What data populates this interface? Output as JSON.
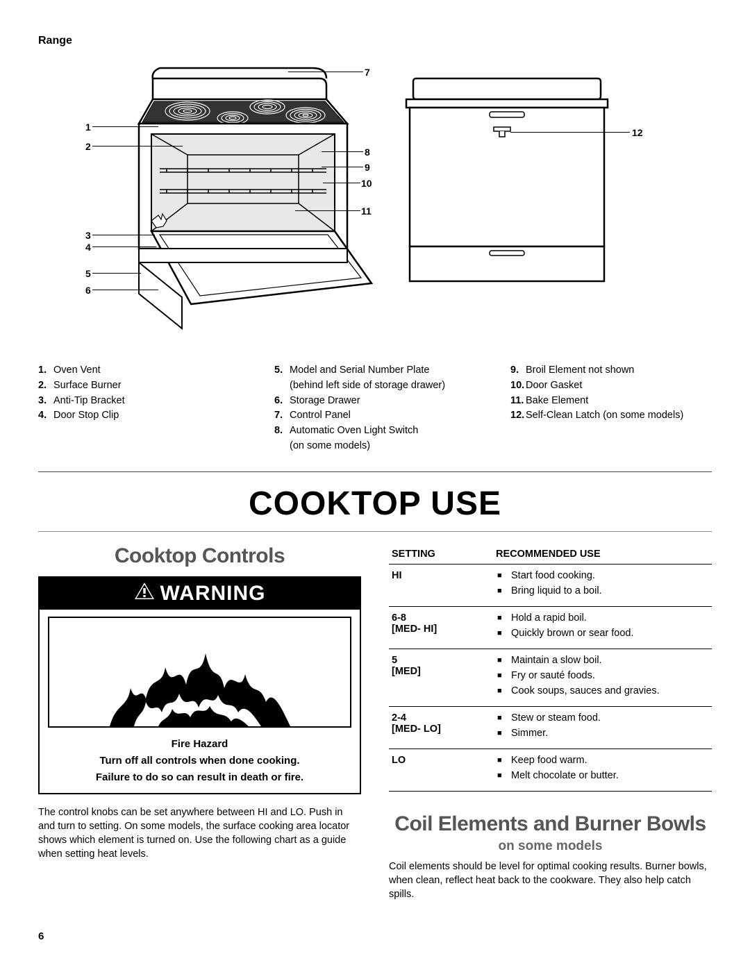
{
  "top_label": "Range",
  "diagram": {
    "callouts_left": [
      "1",
      "2",
      "3",
      "4",
      "5",
      "6"
    ],
    "callouts_mid": [
      "7",
      "8",
      "9",
      "10",
      "11"
    ],
    "callouts_right": [
      "12"
    ]
  },
  "legend": {
    "col1": [
      {
        "n": "1.",
        "t": "Oven Vent"
      },
      {
        "n": "2.",
        "t": "Surface Burner"
      },
      {
        "n": "3.",
        "t": "Anti-Tip Bracket"
      },
      {
        "n": "4.",
        "t": "Door Stop Clip"
      }
    ],
    "col2": [
      {
        "n": "5.",
        "t": "Model and Serial Number Plate",
        "sub": "(behind left side of storage drawer)"
      },
      {
        "n": "6.",
        "t": "Storage Drawer"
      },
      {
        "n": "7.",
        "t": "Control Panel"
      },
      {
        "n": "8.",
        "t": "Automatic Oven Light Switch",
        "sub": "(on some models)"
      }
    ],
    "col3": [
      {
        "n": "9.",
        "t": "Broil Element not shown"
      },
      {
        "n": "10.",
        "t": "Door Gasket"
      },
      {
        "n": "11.",
        "t": "Bake Element"
      },
      {
        "n": "12.",
        "t": "Self-Clean Latch (on some models)"
      }
    ]
  },
  "main_title": "COOKTOP USE",
  "left": {
    "subheading": "Cooktop Controls",
    "warning_label": "WARNING",
    "hazard": {
      "title": "Fire Hazard",
      "line1": "Turn off all controls when done cooking.",
      "line2": "Failure to do so can result in death or fire."
    },
    "paragraph": "The control knobs can be set anywhere between HI and LO. Push in and turn to setting. On some models, the surface cooking area locator shows which element is turned on. Use the following chart as a guide when setting heat levels."
  },
  "right": {
    "table": {
      "h1": "SETTING",
      "h2": "RECOMMENDED USE",
      "rows": [
        {
          "setting": "HI",
          "uses": [
            "Start food cooking.",
            "Bring liquid to a boil."
          ]
        },
        {
          "setting": "6-8\n[MED- HI]",
          "uses": [
            "Hold a rapid boil.",
            "Quickly brown or sear food."
          ]
        },
        {
          "setting": "5\n[MED]",
          "uses": [
            "Maintain a slow boil.",
            "Fry or sauté foods.",
            "Cook soups, sauces and gravies."
          ]
        },
        {
          "setting": "2-4\n[MED- LO]",
          "uses": [
            "Stew or steam food.",
            "Simmer."
          ]
        },
        {
          "setting": "LO",
          "uses": [
            "Keep food warm.",
            "Melt chocolate or butter."
          ]
        }
      ]
    },
    "subheading": "Coil Elements and Burner Bowls",
    "on_some": "on some models",
    "paragraph": "Coil elements should be level for optimal cooking results. Burner bowls, when clean, reflect heat back to the cookware. They also help catch spills."
  },
  "page_number": "6",
  "colors": {
    "text": "#000000",
    "grey_heading": "#555555",
    "rule": "#888888"
  }
}
